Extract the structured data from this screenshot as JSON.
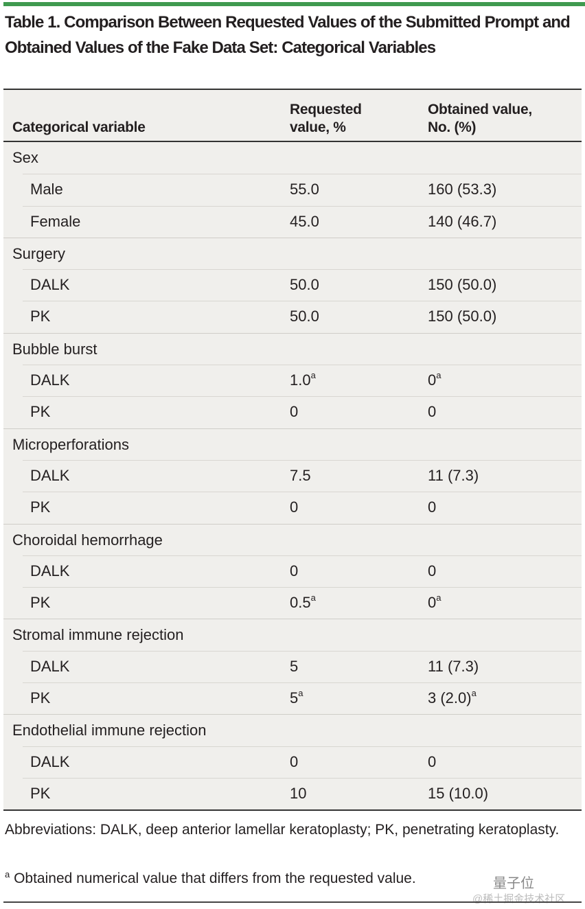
{
  "title": "Table 1. Comparison Between Requested Values of the Submitted Prompt and Obtained Values of the Fake Data Set: Categorical Variables",
  "headers": {
    "col1": "Categorical variable",
    "col2": "Requested value, %",
    "col3": "Obtained value, No. (%)"
  },
  "rows": [
    {
      "type": "group",
      "label": "Sex"
    },
    {
      "type": "sub",
      "label": "Male",
      "requested": "55.0",
      "obtained": "160 (53.3)"
    },
    {
      "type": "sub",
      "label": "Female",
      "requested": "45.0",
      "obtained": "140 (46.7)"
    },
    {
      "type": "group",
      "label": "Surgery"
    },
    {
      "type": "sub",
      "label": "DALK",
      "requested": "50.0",
      "obtained": "150 (50.0)"
    },
    {
      "type": "sub",
      "label": "PK",
      "requested": "50.0",
      "obtained": "150 (50.0)"
    },
    {
      "type": "group",
      "label": "Bubble burst"
    },
    {
      "type": "sub",
      "label": "DALK",
      "requested": "1.0",
      "requested_sup": "a",
      "obtained": "0",
      "obtained_sup": "a"
    },
    {
      "type": "sub",
      "label": "PK",
      "requested": "0",
      "obtained": "0"
    },
    {
      "type": "group",
      "label": "Microperforations"
    },
    {
      "type": "sub",
      "label": "DALK",
      "requested": "7.5",
      "obtained": "11 (7.3)"
    },
    {
      "type": "sub",
      "label": "PK",
      "requested": "0",
      "obtained": "0"
    },
    {
      "type": "group",
      "label": "Choroidal hemorrhage"
    },
    {
      "type": "sub",
      "label": "DALK",
      "requested": "0",
      "obtained": "0"
    },
    {
      "type": "sub",
      "label": "PK",
      "requested": "0.5",
      "requested_sup": "a",
      "obtained": "0",
      "obtained_sup": "a"
    },
    {
      "type": "group",
      "label": "Stromal immune rejection"
    },
    {
      "type": "sub",
      "label": "DALK",
      "requested": "5",
      "obtained": "11 (7.3)"
    },
    {
      "type": "sub",
      "label": "PK",
      "requested": "5",
      "requested_sup": "a",
      "obtained": "3 (2.0)",
      "obtained_sup": "a"
    },
    {
      "type": "group",
      "label": "Endothelial immune rejection"
    },
    {
      "type": "sub",
      "label": "DALK",
      "requested": "0",
      "obtained": "0"
    },
    {
      "type": "sub",
      "label": "PK",
      "requested": "10",
      "obtained": "15 (10.0)"
    }
  ],
  "footnotes": {
    "abbreviations": "Abbreviations: DALK, deep anterior lamellar keratoplasty; PK, penetrating keratoplasty.",
    "note_mark": "a",
    "note": " Obtained numerical value that differs from the requested value."
  },
  "watermark": {
    "line1": "量子位",
    "line2": "@稀土掘金技术社区"
  }
}
